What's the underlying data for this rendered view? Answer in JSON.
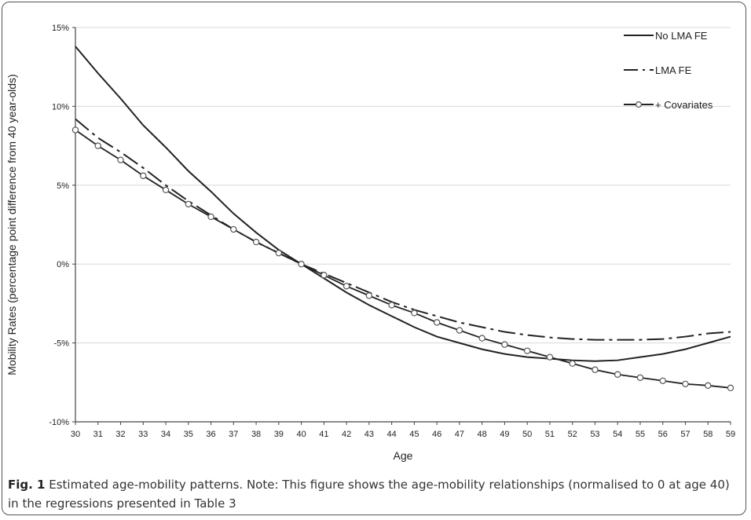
{
  "chart_data": {
    "type": "line",
    "title": "",
    "xlabel": "Age",
    "ylabel": "Mobility Rates (percentage point difference from 40 year-olds)",
    "xlim": [
      30,
      59
    ],
    "ylim": [
      -10,
      15
    ],
    "y_ticks": [
      -10,
      -5,
      0,
      5,
      10,
      15
    ],
    "y_tick_labels": [
      "-10%",
      "-5%",
      "0%",
      "5%",
      "10%",
      "15%"
    ],
    "x": [
      30,
      31,
      32,
      33,
      34,
      35,
      36,
      37,
      38,
      39,
      40,
      41,
      42,
      43,
      44,
      45,
      46,
      47,
      48,
      49,
      50,
      51,
      52,
      53,
      54,
      55,
      56,
      57,
      58,
      59
    ],
    "grid": "horizontal",
    "legend_position": "top-right",
    "series": [
      {
        "name": "No LMA FE",
        "style": "solid",
        "color": "#222222",
        "values": [
          13.8,
          12.1,
          10.5,
          8.8,
          7.4,
          5.9,
          4.6,
          3.2,
          2.0,
          0.9,
          0.0,
          -0.9,
          -1.8,
          -2.6,
          -3.3,
          -4.0,
          -4.6,
          -5.0,
          -5.4,
          -5.7,
          -5.9,
          -6.0,
          -6.1,
          -6.15,
          -6.1,
          -5.9,
          -5.7,
          -5.4,
          -5.0,
          -4.6
        ]
      },
      {
        "name": "LMA FE",
        "style": "dash-dot",
        "color": "#222222",
        "values": [
          9.2,
          8.0,
          7.1,
          6.1,
          5.0,
          4.0,
          3.1,
          2.2,
          1.4,
          0.7,
          0.0,
          -0.6,
          -1.2,
          -1.8,
          -2.4,
          -2.9,
          -3.3,
          -3.7,
          -4.0,
          -4.3,
          -4.5,
          -4.65,
          -4.75,
          -4.8,
          -4.8,
          -4.8,
          -4.75,
          -4.6,
          -4.4,
          -4.3
        ]
      },
      {
        "name": "+ Covariates",
        "style": "solid-marker",
        "color": "#222222",
        "values": [
          8.5,
          7.5,
          6.6,
          5.6,
          4.7,
          3.8,
          3.0,
          2.2,
          1.4,
          0.7,
          0.0,
          -0.7,
          -1.4,
          -2.0,
          -2.6,
          -3.1,
          -3.7,
          -4.2,
          -4.7,
          -5.1,
          -5.5,
          -5.9,
          -6.3,
          -6.7,
          -7.0,
          -7.2,
          -7.4,
          -7.6,
          -7.7,
          -7.85
        ]
      }
    ]
  },
  "caption": {
    "label": "Fig. 1",
    "text": " Estimated age-mobility patterns. Note: This figure shows the age-mobility relationships (normalised to 0 at age 40) in the regressions presented in Table 3"
  }
}
